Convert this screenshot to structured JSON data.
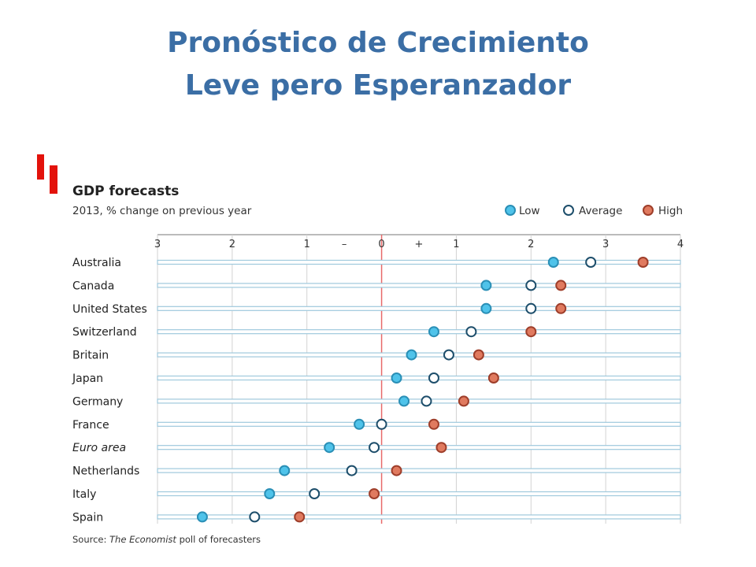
{
  "slide": {
    "title_line1": "Pronóstico de Crecimiento",
    "title_line2": "Leve pero Esperanzador"
  },
  "colors": {
    "title": "#3b6ea5",
    "logo": "#e3120b",
    "low": "#4fc3ea",
    "average": "#ffffff",
    "average_stroke": "#1d4e6b",
    "high": "#e07a5f",
    "row_line": "#9fc9dc",
    "zero_line": "#e86a6a"
  },
  "chart_data": {
    "type": "scatter",
    "title": "GDP forecasts",
    "subtitle": "2013, % change on previous year",
    "source": "Source: The Economist poll of forecasters",
    "xlim": [
      -3,
      4
    ],
    "x_ticks": [
      {
        "value": -3,
        "label": "3"
      },
      {
        "value": -2,
        "label": "2"
      },
      {
        "value": -1,
        "label": "1"
      },
      {
        "value": -0.5,
        "label": "–"
      },
      {
        "value": 0,
        "label": "0"
      },
      {
        "value": 0.5,
        "label": "+"
      },
      {
        "value": 1,
        "label": "1"
      },
      {
        "value": 2,
        "label": "2"
      },
      {
        "value": 3,
        "label": "3"
      },
      {
        "value": 4,
        "label": "4"
      }
    ],
    "grid": true,
    "legend_position": "top-right",
    "categories": [
      "Australia",
      "Canada",
      "United States",
      "Switzerland",
      "Britain",
      "Japan",
      "Germany",
      "France",
      "Euro area",
      "Netherlands",
      "Italy",
      "Spain"
    ],
    "italic_categories": [
      "Euro area"
    ],
    "series": [
      {
        "name": "Low",
        "values": [
          2.3,
          1.4,
          1.4,
          0.7,
          0.4,
          0.2,
          0.3,
          -0.3,
          -0.7,
          -1.3,
          -1.5,
          -2.4
        ]
      },
      {
        "name": "Average",
        "values": [
          2.8,
          2.0,
          2.0,
          1.2,
          0.9,
          0.7,
          0.6,
          0.0,
          -0.1,
          -0.4,
          -0.9,
          -1.7
        ]
      },
      {
        "name": "High",
        "values": [
          3.5,
          2.4,
          2.4,
          2.0,
          1.3,
          1.5,
          1.1,
          0.7,
          0.8,
          0.2,
          -0.1,
          -1.1
        ]
      }
    ]
  }
}
